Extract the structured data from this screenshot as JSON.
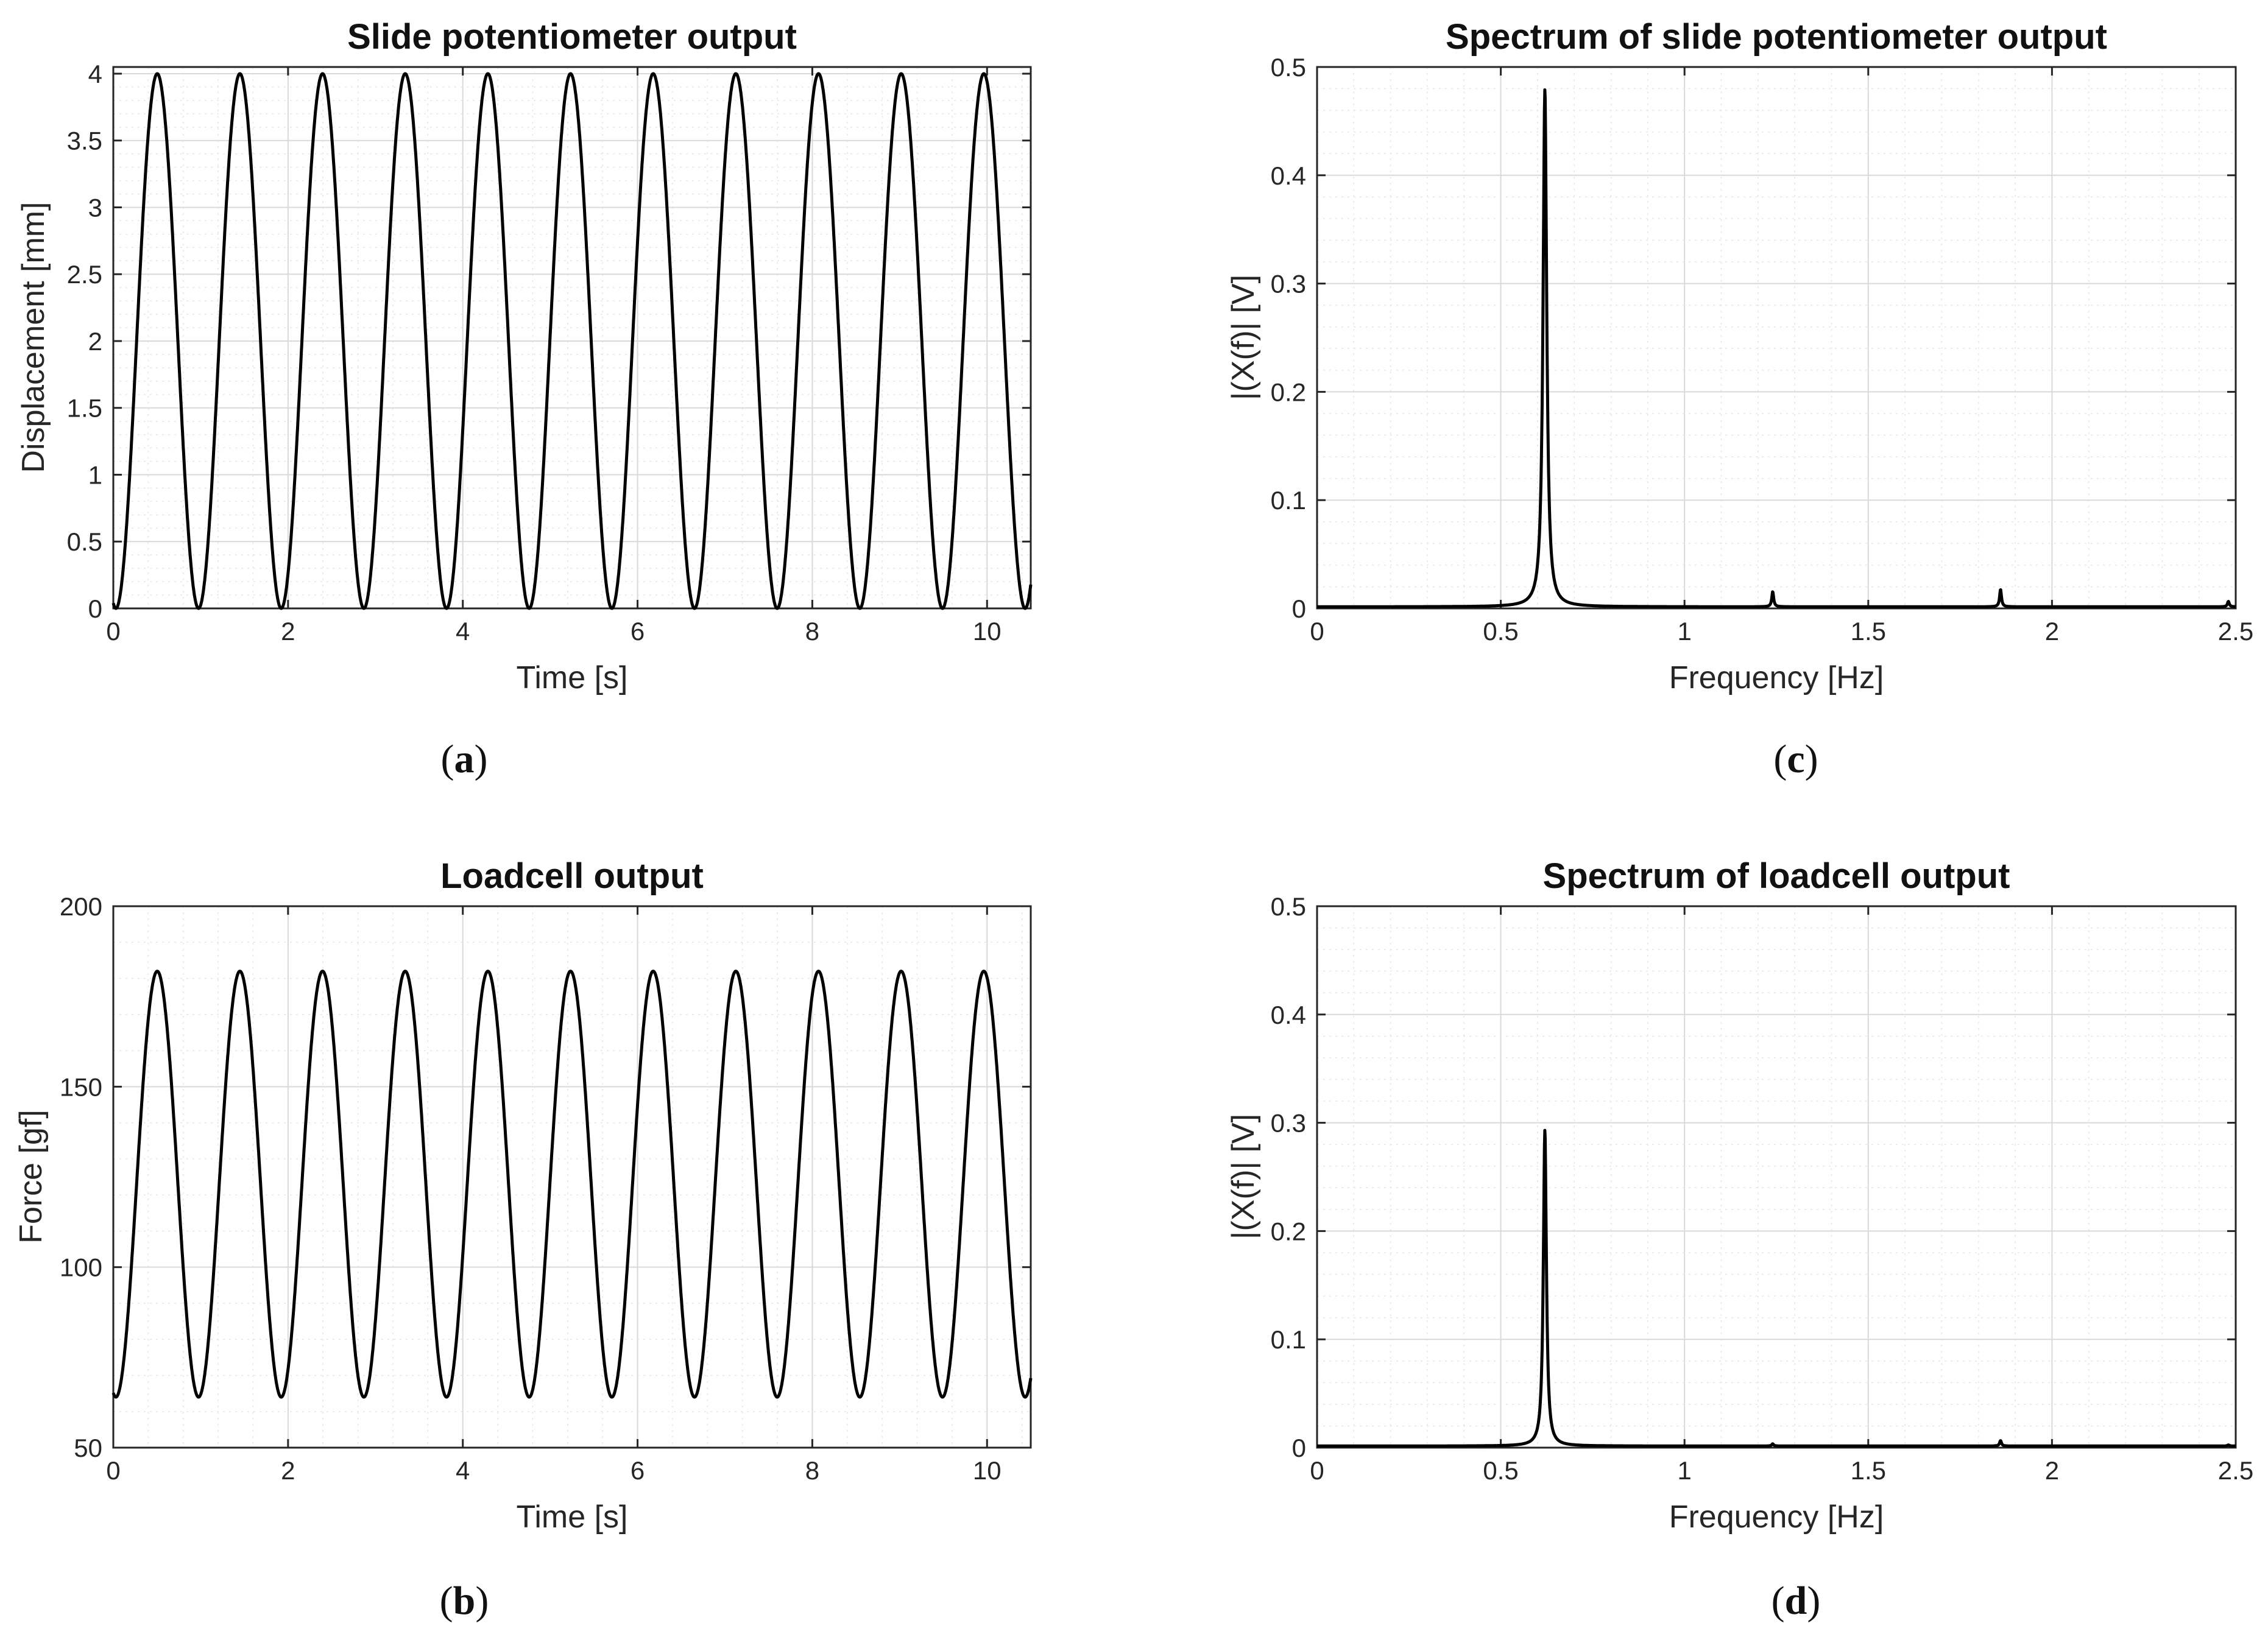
{
  "chart_data": [
    {
      "id": "a",
      "type": "line",
      "panel_label": "a",
      "title": "Slide potentiometer output",
      "xlabel": "Time [s]",
      "ylabel": "Displacement [mm]",
      "xlim": [
        0,
        10.5
      ],
      "ylim": [
        0,
        4.05
      ],
      "xticks": [
        0,
        2,
        4,
        6,
        8,
        10
      ],
      "yticks": [
        0,
        0.5,
        1,
        1.5,
        2,
        2.5,
        3,
        3.5,
        4
      ],
      "grid": true,
      "series": [
        {
          "color": "#000000",
          "min": 0,
          "max": 4,
          "period_s": 0.946,
          "phase_s": 0.03
        }
      ]
    },
    {
      "id": "b",
      "type": "line",
      "panel_label": "b",
      "title": "Loadcell output",
      "xlabel": "Time [s]",
      "ylabel": "Force [gf]",
      "xlim": [
        0,
        10.5
      ],
      "ylim": [
        50,
        200
      ],
      "xticks": [
        0,
        2,
        4,
        6,
        8,
        10
      ],
      "yticks": [
        50,
        100,
        150,
        200
      ],
      "grid": true,
      "series": [
        {
          "color": "#000000",
          "min": 64,
          "max": 182,
          "period_s": 0.946,
          "phase_s": 0.03
        }
      ]
    },
    {
      "id": "c",
      "type": "line",
      "panel_label": "c",
      "title": "Spectrum of slide potentiometer output",
      "xlabel": "Frequency [Hz]",
      "ylabel": "|(X(f)| [V]",
      "xlim": [
        0,
        2.5
      ],
      "ylim": [
        0,
        0.5
      ],
      "xticks": [
        0,
        0.5,
        1,
        1.5,
        2,
        2.5
      ],
      "yticks": [
        0,
        0.1,
        0.2,
        0.3,
        0.4,
        0.5
      ],
      "grid": true,
      "series": [
        {
          "color": "#000000",
          "peaks": [
            {
              "f": 0.62,
              "amp": 0.478,
              "width": 0.006
            },
            {
              "f": 1.24,
              "amp": 0.014,
              "width": 0.003
            },
            {
              "f": 1.86,
              "amp": 0.016,
              "width": 0.003
            },
            {
              "f": 2.48,
              "amp": 0.005,
              "width": 0.003
            }
          ]
        }
      ]
    },
    {
      "id": "d",
      "type": "line",
      "panel_label": "d",
      "title": "Spectrum of loadcell output",
      "xlabel": "Frequency [Hz]",
      "ylabel": "|(X(f)| [V]",
      "xlim": [
        0,
        2.5
      ],
      "ylim": [
        0,
        0.5
      ],
      "xticks": [
        0,
        0.5,
        1,
        1.5,
        2,
        2.5
      ],
      "yticks": [
        0,
        0.1,
        0.2,
        0.3,
        0.4,
        0.5
      ],
      "grid": true,
      "series": [
        {
          "color": "#000000",
          "peaks": [
            {
              "f": 0.62,
              "amp": 0.292,
              "width": 0.005
            },
            {
              "f": 1.24,
              "amp": 0.002,
              "width": 0.003
            },
            {
              "f": 1.86,
              "amp": 0.005,
              "width": 0.003
            },
            {
              "f": 2.48,
              "amp": 0.001,
              "width": 0.003
            }
          ]
        }
      ]
    }
  ]
}
